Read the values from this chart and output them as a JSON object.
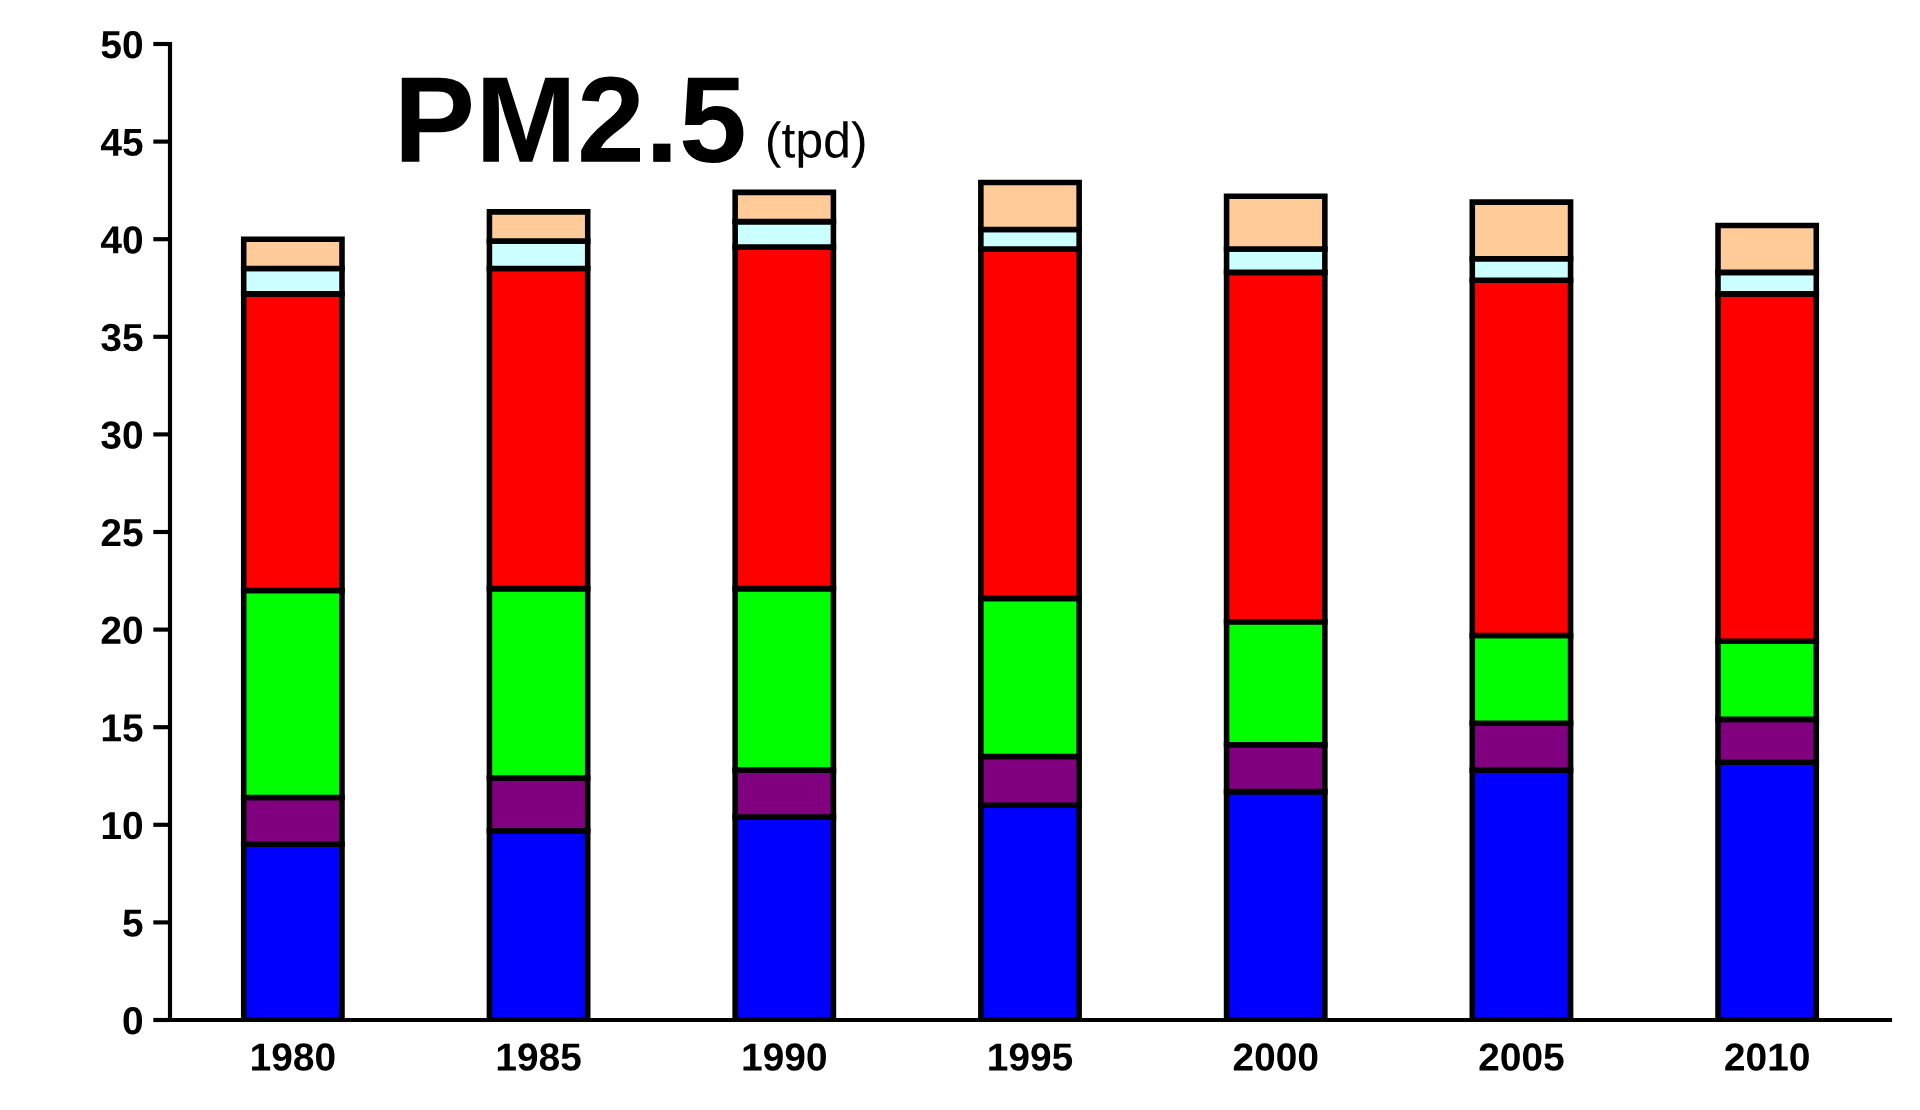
{
  "chart_data": {
    "type": "bar",
    "stacked": true,
    "title": "PM2.5",
    "subtitle": "(tpd)",
    "categories": [
      "1980",
      "1985",
      "1990",
      "1995",
      "2000",
      "2005",
      "2010"
    ],
    "series": [
      {
        "color": "#0000ff",
        "values": [
          9.0,
          9.7,
          10.4,
          11.0,
          11.7,
          12.8,
          13.2
        ]
      },
      {
        "color": "#800080",
        "values": [
          2.4,
          2.7,
          2.4,
          2.5,
          2.4,
          2.4,
          2.2
        ]
      },
      {
        "color": "#00ff00",
        "values": [
          10.6,
          9.7,
          9.3,
          8.1,
          6.3,
          4.5,
          4.0
        ]
      },
      {
        "color": "#ff0000",
        "values": [
          15.2,
          16.4,
          17.5,
          17.9,
          17.9,
          18.2,
          17.8
        ]
      },
      {
        "color": "#ccffff",
        "values": [
          1.3,
          1.4,
          1.3,
          1.0,
          1.2,
          1.1,
          1.1
        ]
      },
      {
        "color": "#ffcc99",
        "values": [
          1.5,
          1.5,
          1.5,
          2.4,
          2.7,
          2.9,
          2.4
        ]
      }
    ],
    "ylim": [
      0,
      50
    ],
    "yticks": [
      0,
      5,
      10,
      15,
      20,
      25,
      30,
      35,
      40,
      45,
      50
    ],
    "grid": false
  }
}
